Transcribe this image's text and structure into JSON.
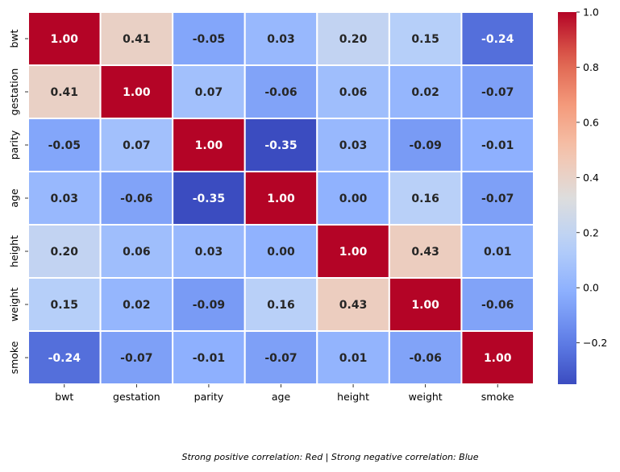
{
  "chart_data": {
    "type": "heatmap",
    "title": "",
    "xlabel": "",
    "ylabel": "",
    "x": [
      "bwt",
      "gestation",
      "parity",
      "age",
      "height",
      "weight",
      "smoke"
    ],
    "y": [
      "bwt",
      "gestation",
      "parity",
      "age",
      "height",
      "weight",
      "smoke"
    ],
    "values": [
      [
        1.0,
        0.41,
        -0.05,
        0.03,
        0.2,
        0.15,
        -0.24
      ],
      [
        0.41,
        1.0,
        0.07,
        -0.06,
        0.06,
        0.02,
        -0.07
      ],
      [
        -0.05,
        0.07,
        1.0,
        -0.35,
        0.03,
        -0.09,
        -0.01
      ],
      [
        0.03,
        -0.06,
        -0.35,
        1.0,
        0.0,
        0.16,
        -0.07
      ],
      [
        0.2,
        0.06,
        0.03,
        0.0,
        1.0,
        0.43,
        0.01
      ],
      [
        0.15,
        0.02,
        -0.09,
        0.16,
        0.43,
        1.0,
        -0.06
      ],
      [
        -0.24,
        -0.07,
        -0.01,
        -0.07,
        0.01,
        -0.06,
        1.0
      ]
    ],
    "colormap": "coolwarm",
    "vmin": -0.35,
    "vmax": 1.0,
    "annotations": "values shown with two decimals",
    "colorbar": {
      "ticks": [
        -0.2,
        0.0,
        0.2,
        0.4,
        0.6,
        0.8,
        1.0
      ],
      "tick_labels": [
        "−0.2",
        "0.0",
        "0.2",
        "0.4",
        "0.6",
        "0.8",
        "1.0"
      ],
      "placement": "right"
    },
    "grid": "white cell borders",
    "caption": "Strong positive correlation: Red | Strong negative correlation: Blue"
  }
}
